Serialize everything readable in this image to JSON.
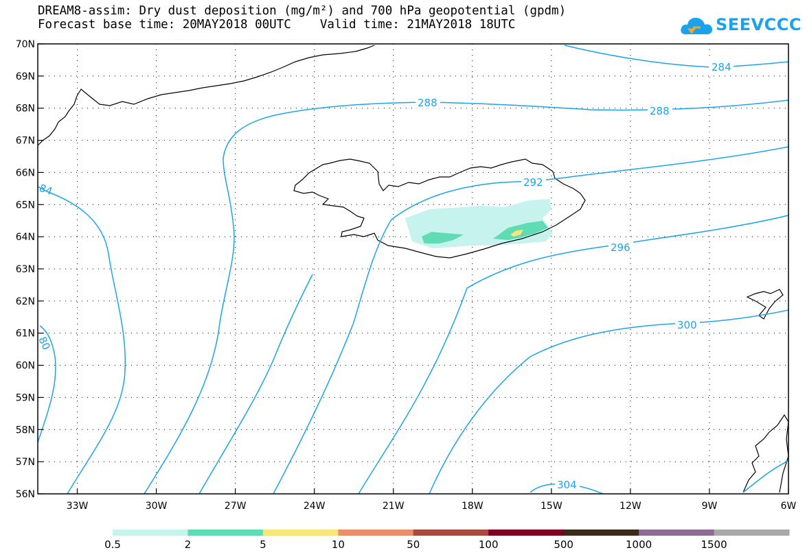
{
  "title": {
    "line1": "DREAM8-assim: Dry dust deposition (mg/m²) and 700 hPa geopotential (gpdm)",
    "line2": "Forecast base time: 20MAY2018 00UTC    Valid time: 21MAY2018 18UTC"
  },
  "logo": {
    "text": "SEEVCCC"
  },
  "map": {
    "lat_range": [
      56,
      70
    ],
    "lon_range": [
      -34.5,
      -6
    ],
    "lat_labels": [
      "70N",
      "69N",
      "68N",
      "67N",
      "66N",
      "65N",
      "64N",
      "63N",
      "62N",
      "61N",
      "60N",
      "59N",
      "58N",
      "57N",
      "56N"
    ],
    "lon_labels": [
      "33W",
      "30W",
      "27W",
      "24W",
      "21W",
      "18W",
      "15W",
      "12W",
      "9W",
      "6W"
    ],
    "gridlines": true
  },
  "contours": {
    "color": "#1aa3ec",
    "labels": [
      "284",
      "288",
      "288",
      "292",
      "296",
      "300",
      "304",
      "84",
      "80"
    ]
  },
  "colorbar": {
    "labels": [
      "0.5",
      "2",
      "5",
      "10",
      "50",
      "100",
      "500",
      "1000",
      "1500"
    ],
    "colors": [
      "#c6f3ee",
      "#5fdcb3",
      "#f8e67a",
      "#eb8f6b",
      "#a94a40",
      "#7d0023",
      "#3a2a1a",
      "#8e6a95",
      "#a8a8a8"
    ]
  }
}
